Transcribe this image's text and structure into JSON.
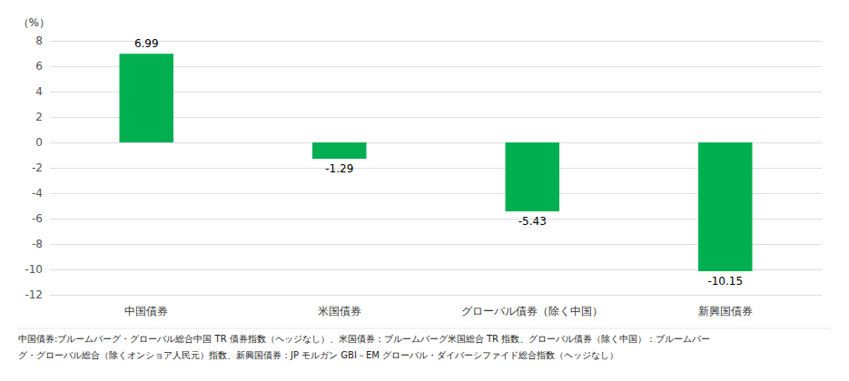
{
  "chart_data": {
    "type": "bar",
    "categories": [
      "中国債券",
      "米国債券",
      "グローバル債券（除く中国）",
      "新興国債券"
    ],
    "values": [
      6.99,
      -1.29,
      -5.43,
      -10.15
    ],
    "color": "#00b050",
    "ylabel": "（%）",
    "ylim": [
      -12,
      8
    ],
    "yticks": [
      -12,
      -10,
      -8,
      -6,
      -4,
      -2,
      0,
      2,
      4,
      6,
      8
    ],
    "grid": true,
    "data_labels": true,
    "annotations": [
      "中国債券:ブルームバーグ・グローバル総合中国 TR 債券指数（ヘッジなし）、米国債券：ブルームバーグ米国総合 TR 指数、グローバル債券（除く中国）：ブルームバー",
      "グ・グローバル総合（除くオンショア人民元）指数、新興国債券：JP モルガン GBI－EM グローバル・ダイバーシファイド総合指数（ヘッジなし）"
    ]
  }
}
